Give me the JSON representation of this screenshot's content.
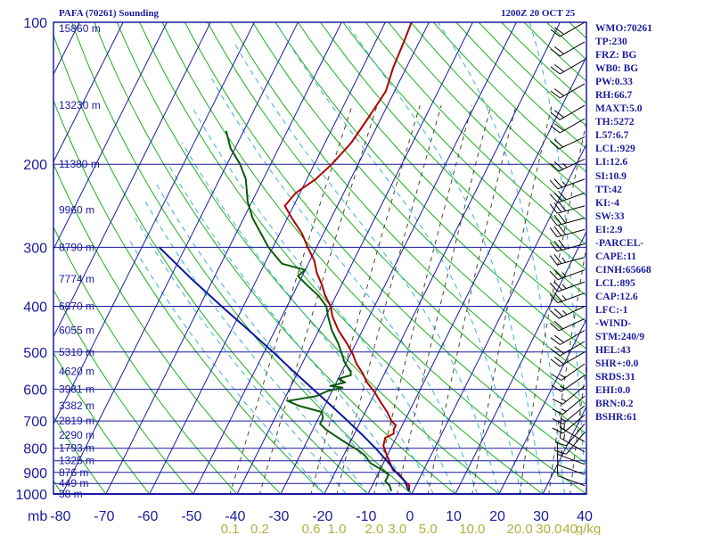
{
  "header": {
    "station": "PAFA (70261) Sounding",
    "time": "1200Z 20 OCT 25"
  },
  "chart_data": {
    "type": "skew-t",
    "y_axis": {
      "unit_label": "mb",
      "pressure_ticks": [
        100,
        200,
        300,
        400,
        500,
        600,
        700,
        800,
        900,
        1000
      ],
      "scale": "log",
      "ylim": [
        1000,
        100
      ]
    },
    "x_axis": {
      "temperature_ticks": [
        -80,
        -70,
        -60,
        -50,
        -40,
        -30,
        -20,
        -10,
        0,
        10,
        20,
        30,
        40
      ],
      "mixing_ratio_ticks": [
        "0.1",
        "0.2",
        "0.6",
        "1.0",
        "2.0",
        "3.0",
        "5.0",
        "10.0",
        "20.0",
        "30.0",
        "40",
        "g/kg"
      ]
    },
    "heights": [
      {
        "p": 103,
        "label": "15860 m"
      },
      {
        "p": 150,
        "label": "13230 m"
      },
      {
        "p": 200,
        "label": "11380 m"
      },
      {
        "p": 250,
        "label": "9960 m"
      },
      {
        "p": 300,
        "label": "8790 m"
      },
      {
        "p": 350,
        "label": "7774 m"
      },
      {
        "p": 400,
        "label": "6870 m"
      },
      {
        "p": 450,
        "label": "6055 m"
      },
      {
        "p": 500,
        "label": "5310 m"
      },
      {
        "p": 550,
        "label": "4620 m"
      },
      {
        "p": 600,
        "label": "3981 m"
      },
      {
        "p": 650,
        "label": "3382 m"
      },
      {
        "p": 700,
        "label": "2819 m"
      },
      {
        "p": 750,
        "label": "2290 m"
      },
      {
        "p": 800,
        "label": "1793 m"
      },
      {
        "p": 850,
        "label": "1325 m"
      },
      {
        "p": 900,
        "label": "876 m"
      },
      {
        "p": 950,
        "label": "449 m"
      },
      {
        "p": 1000,
        "label": "38 m"
      }
    ],
    "series": [
      {
        "kind": "temperature",
        "color": "#b00000",
        "points": [
          [
            986,
            -1
          ],
          [
            960,
            -1.5
          ],
          [
            940,
            -3
          ],
          [
            910,
            -5
          ],
          [
            890,
            -7
          ],
          [
            860,
            -8.5
          ],
          [
            830,
            -10
          ],
          [
            810,
            -11
          ],
          [
            790,
            -12
          ],
          [
            760,
            -12.5
          ],
          [
            745,
            -11
          ],
          [
            730,
            -11.5
          ],
          [
            715,
            -11.5
          ],
          [
            700,
            -13
          ],
          [
            670,
            -15
          ],
          [
            640,
            -17.5
          ],
          [
            610,
            -20
          ],
          [
            580,
            -23
          ],
          [
            555,
            -25
          ],
          [
            530,
            -27.5
          ],
          [
            505,
            -29.5
          ],
          [
            480,
            -32
          ],
          [
            450,
            -35.5
          ],
          [
            420,
            -38.5
          ],
          [
            400,
            -40
          ],
          [
            380,
            -42.5
          ],
          [
            360,
            -44.5
          ],
          [
            340,
            -47
          ],
          [
            320,
            -49
          ],
          [
            300,
            -52
          ],
          [
            280,
            -55
          ],
          [
            260,
            -59
          ],
          [
            245,
            -62
          ],
          [
            230,
            -61
          ],
          [
            215,
            -58
          ],
          [
            200,
            -56
          ],
          [
            180,
            -54
          ],
          [
            160,
            -53
          ],
          [
            140,
            -52
          ],
          [
            125,
            -53
          ],
          [
            110,
            -53.5
          ],
          [
            100,
            -54
          ]
        ]
      },
      {
        "kind": "dewpoint",
        "color": "#0a5a0a",
        "points": [
          [
            986,
            -5
          ],
          [
            960,
            -6
          ],
          [
            940,
            -7.5
          ],
          [
            910,
            -7.5
          ],
          [
            890,
            -9.5
          ],
          [
            860,
            -13
          ],
          [
            830,
            -15
          ],
          [
            810,
            -17
          ],
          [
            790,
            -19.5
          ],
          [
            770,
            -22
          ],
          [
            750,
            -24.5
          ],
          [
            730,
            -27
          ],
          [
            710,
            -29
          ],
          [
            690,
            -29
          ],
          [
            670,
            -30
          ],
          [
            650,
            -36
          ],
          [
            635,
            -39
          ],
          [
            620,
            -33
          ],
          [
            605,
            -31
          ],
          [
            595,
            -28
          ],
          [
            590,
            -31
          ],
          [
            580,
            -28
          ],
          [
            570,
            -30
          ],
          [
            560,
            -27.5
          ],
          [
            550,
            -28
          ],
          [
            540,
            -29
          ],
          [
            525,
            -30.5
          ],
          [
            505,
            -32
          ],
          [
            480,
            -34
          ],
          [
            450,
            -37
          ],
          [
            420,
            -39.5
          ],
          [
            400,
            -41
          ],
          [
            380,
            -44
          ],
          [
            360,
            -48
          ],
          [
            345,
            -51
          ],
          [
            335,
            -50
          ],
          [
            325,
            -56
          ],
          [
            310,
            -59
          ],
          [
            300,
            -61
          ],
          [
            260,
            -68
          ],
          [
            240,
            -71
          ],
          [
            215,
            -74
          ],
          [
            200,
            -77
          ],
          [
            185,
            -81
          ],
          [
            170,
            -84
          ]
        ]
      },
      {
        "kind": "parcel",
        "color": "#0a1a9a",
        "points": [
          [
            986,
            -1
          ],
          [
            940,
            -3
          ],
          [
            900,
            -6
          ],
          [
            850,
            -9.5
          ],
          [
            800,
            -13.5
          ],
          [
            750,
            -18
          ],
          [
            700,
            -23
          ],
          [
            650,
            -28.5
          ],
          [
            600,
            -34.5
          ],
          [
            550,
            -41
          ],
          [
            500,
            -48
          ],
          [
            450,
            -56
          ],
          [
            400,
            -65
          ],
          [
            350,
            -75
          ],
          [
            300,
            -86
          ]
        ]
      }
    ],
    "wind_barbs": [
      {
        "p": 100,
        "dir": 240,
        "spd": 20
      },
      {
        "p": 110,
        "dir": 240,
        "spd": 20
      },
      {
        "p": 120,
        "dir": 240,
        "spd": 20
      },
      {
        "p": 135,
        "dir": 240,
        "spd": 20
      },
      {
        "p": 150,
        "dir": 240,
        "spd": 20
      },
      {
        "p": 160,
        "dir": 240,
        "spd": 20
      },
      {
        "p": 175,
        "dir": 245,
        "spd": 20
      },
      {
        "p": 195,
        "dir": 245,
        "spd": 25
      },
      {
        "p": 215,
        "dir": 250,
        "spd": 25
      },
      {
        "p": 230,
        "dir": 250,
        "spd": 30
      },
      {
        "p": 245,
        "dir": 255,
        "spd": 30
      },
      {
        "p": 260,
        "dir": 255,
        "spd": 30
      },
      {
        "p": 275,
        "dir": 255,
        "spd": 30
      },
      {
        "p": 295,
        "dir": 255,
        "spd": 30
      },
      {
        "p": 315,
        "dir": 255,
        "spd": 25
      },
      {
        "p": 335,
        "dir": 250,
        "spd": 25
      },
      {
        "p": 355,
        "dir": 250,
        "spd": 25
      },
      {
        "p": 375,
        "dir": 250,
        "spd": 25
      },
      {
        "p": 400,
        "dir": 245,
        "spd": 25
      },
      {
        "p": 425,
        "dir": 245,
        "spd": 20
      },
      {
        "p": 450,
        "dir": 240,
        "spd": 20
      },
      {
        "p": 475,
        "dir": 240,
        "spd": 20
      },
      {
        "p": 500,
        "dir": 240,
        "spd": 20
      },
      {
        "p": 530,
        "dir": 235,
        "spd": 15
      },
      {
        "p": 560,
        "dir": 235,
        "spd": 15
      },
      {
        "p": 590,
        "dir": 230,
        "spd": 15
      },
      {
        "p": 620,
        "dir": 230,
        "spd": 15
      },
      {
        "p": 650,
        "dir": 230,
        "spd": 15
      },
      {
        "p": 680,
        "dir": 230,
        "spd": 15
      },
      {
        "p": 710,
        "dir": 220,
        "spd": 10
      },
      {
        "p": 740,
        "dir": 220,
        "spd": 10
      },
      {
        "p": 775,
        "dir": 300,
        "spd": 15
      },
      {
        "p": 815,
        "dir": 300,
        "spd": 15
      },
      {
        "p": 865,
        "dir": 290,
        "spd": 15
      },
      {
        "p": 910,
        "dir": 290,
        "spd": 10
      },
      {
        "p": 960,
        "dir": 290,
        "spd": 10
      }
    ]
  },
  "indices": [
    "WMO:70261",
    "TP:230",
    "FRZ: BG",
    "WB0: BG",
    "PW:0.33",
    "RH:66.7",
    "MAXT:5.0",
    "TH:5272",
    "L57:6.7",
    "LCL:929",
    "LI:12.6",
    "SI:10.9",
    "TT:42",
    "KI:-4",
    "SW:33",
    "EI:2.9",
    "-PARCEL-",
    "CAPE:11",
    "CINH:65668",
    "LCL:895",
    "CAP:12.6",
    "LFC:-1",
    "-WIND-",
    "STM:240/9",
    "HEL:43",
    "SHR+:0.0",
    "SRDS:31",
    "EHI:0.0",
    "BRN:0.2",
    "BSHR:61"
  ],
  "colors": {
    "frame": "#1a1aa0",
    "dry_adiabat": "#1bb01b",
    "moist_adiabat": "#3ab0e0",
    "mixing_ratio": "#4a4a2a",
    "mixing_label": "#b0b040",
    "height_label": "#1a1aa0"
  }
}
